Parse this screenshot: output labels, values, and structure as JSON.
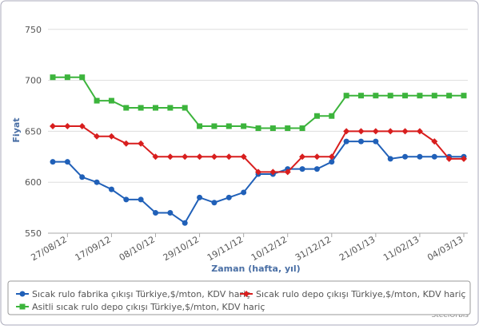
{
  "chart_data": {
    "type": "line",
    "x_label": "Zaman (hafta, yıl)",
    "y_label": "Fiyat",
    "credit": "SteelOrbis",
    "categories": [
      null,
      "27/08/12",
      null,
      null,
      "17/09/12",
      null,
      null,
      "08/10/12",
      null,
      null,
      "29/10/12",
      null,
      null,
      "19/11/12",
      null,
      null,
      "10/12/12",
      null,
      null,
      "31/12/12",
      null,
      null,
      "21/01/13",
      null,
      null,
      "11/02/13",
      null,
      null,
      "04/03/13"
    ],
    "series": [
      {
        "name": "Sıcak rulo fabrika çıkışı Türkiye,$/mton, KDV hariç",
        "color": "#2060b8",
        "marker": "circle",
        "values": [
          620,
          620,
          605,
          600,
          593,
          583,
          583,
          570,
          570,
          560,
          585,
          580,
          585,
          590,
          608,
          608,
          613,
          613,
          613,
          620,
          640,
          640,
          640,
          623,
          625,
          625,
          625,
          625,
          625
        ]
      },
      {
        "name": "Sıcak rulo depo çıkışı Türkiye,$/mton, KDV hariç",
        "color": "#d81e1e",
        "marker": "diamond",
        "values": [
          655,
          655,
          655,
          645,
          645,
          638,
          638,
          625,
          625,
          625,
          625,
          625,
          625,
          625,
          610,
          610,
          610,
          625,
          625,
          625,
          650,
          650,
          650,
          650,
          650,
          650,
          640,
          623,
          623
        ]
      },
      {
        "name": "Asitli sıcak rulo depo çıkışı Türkiye,$/mton, KDV hariç",
        "color": "#3cb43c",
        "marker": "square",
        "values": [
          703,
          703,
          703,
          680,
          680,
          673,
          673,
          673,
          673,
          673,
          655,
          655,
          655,
          655,
          653,
          653,
          653,
          653,
          665,
          665,
          685,
          685,
          685,
          685,
          685,
          685,
          685,
          685,
          685
        ]
      }
    ],
    "ylim": [
      550,
      760
    ],
    "yticks": [
      550,
      600,
      650,
      700,
      750
    ],
    "grid": true
  }
}
